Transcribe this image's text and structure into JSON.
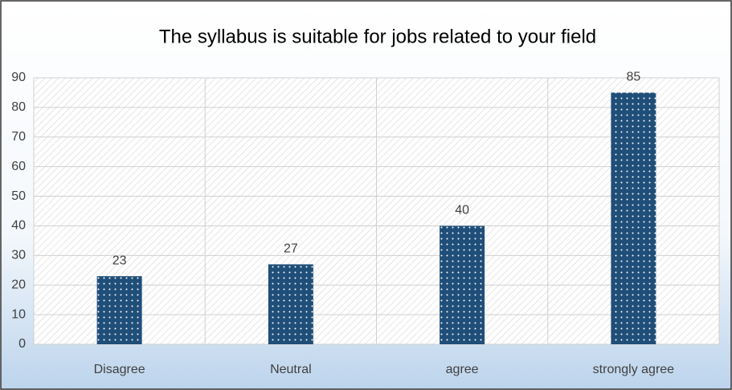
{
  "chart_data": {
    "type": "bar",
    "title": "The syllabus is suitable for jobs related to your field",
    "categories": [
      "Disagree",
      "Neutral",
      "agree",
      "strongly agree"
    ],
    "values": [
      23,
      27,
      40,
      85
    ],
    "color": "#1f4e79",
    "ylim": [
      0,
      90
    ],
    "yticks": [
      0,
      10,
      20,
      30,
      40,
      50,
      60,
      70,
      80,
      90
    ],
    "grid": true,
    "data_labels": true
  }
}
